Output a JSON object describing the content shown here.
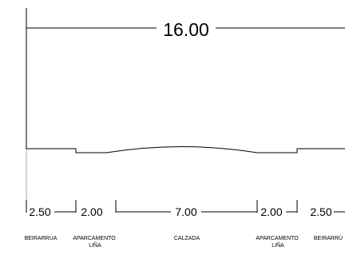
{
  "total_width": "16.00",
  "segments": [
    {
      "dimension": "2.50",
      "label": "BEIRARRÚA"
    },
    {
      "dimension": "2.00",
      "label": "APARCAMENTO\nLIÑA"
    },
    {
      "dimension": "7.00",
      "label": "CALZADA"
    },
    {
      "dimension": "2.00",
      "label": "APARCAMENTO\nLIÑA"
    },
    {
      "dimension": "2.50",
      "label": "BEIRARRÚ"
    }
  ]
}
